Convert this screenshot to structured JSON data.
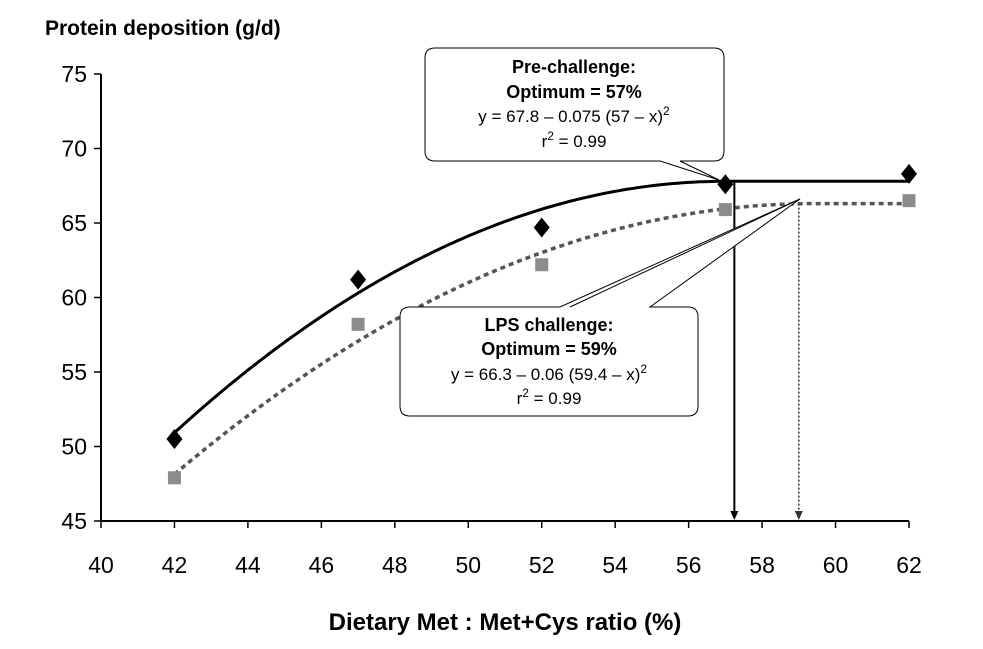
{
  "chart_data": {
    "type": "scatter",
    "ylabel": "Protein deposition (g/d)",
    "xlabel": "Dietary Met : Met+Cys ratio (%)",
    "xlim": [
      40,
      62
    ],
    "ylim": [
      45,
      75
    ],
    "xticks": [
      "40",
      "42",
      "44",
      "46",
      "48",
      "50",
      "52",
      "54",
      "56",
      "58",
      "60",
      "62"
    ],
    "yticks": [
      "45",
      "50",
      "55",
      "60",
      "65",
      "70",
      "75"
    ],
    "grid": false,
    "series": [
      {
        "name": "Pre-challenge",
        "marker": "diamond",
        "color": "#000000",
        "line_style": "solid",
        "x": [
          42,
          47,
          52,
          57,
          62
        ],
        "y": [
          50.5,
          61.2,
          64.7,
          67.6,
          68.3
        ],
        "fit": {
          "a": 67.8,
          "b": 0.075,
          "opt": 57
        },
        "optimum_x": 57
      },
      {
        "name": "LPS challenge",
        "marker": "square",
        "color": "#8c8c8c",
        "line_color": "#555555",
        "line_style": "dotted",
        "x": [
          42,
          47,
          52,
          57,
          62
        ],
        "y": [
          47.9,
          58.2,
          62.2,
          65.9,
          66.5
        ],
        "fit": {
          "a": 66.3,
          "b": 0.06,
          "opt": 59.4
        },
        "optimum_x": 59
      }
    ],
    "annotations": [
      {
        "title": "Pre-challenge:",
        "optimum": "Optimum = 57%",
        "equation_main": "y = 67.8 – 0.075 (57 – x)",
        "equation_sup": "2",
        "r2_label": "r",
        "r2_sup": "2",
        "r2_value": " = 0.99"
      },
      {
        "title": "LPS challenge:",
        "optimum": "Optimum = 59%",
        "equation_main": "y = 66.3 – 0.06 (59.4 – x)",
        "equation_sup": "2",
        "r2_label": "r",
        "r2_sup": "2",
        "r2_value": " = 0.99"
      }
    ]
  }
}
